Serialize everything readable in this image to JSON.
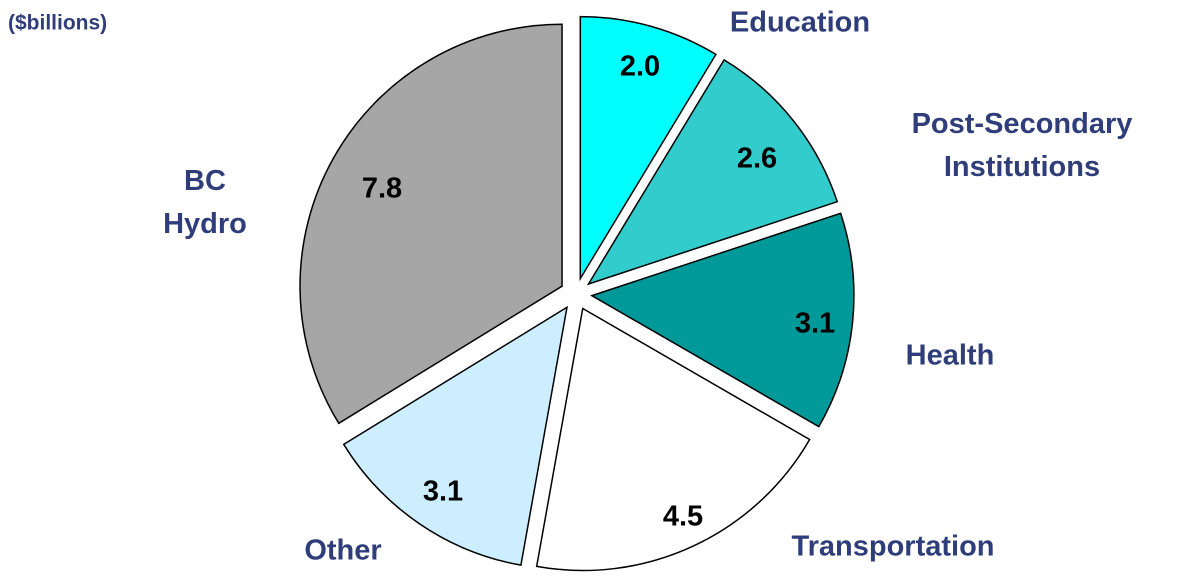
{
  "chart_data": {
    "type": "pie",
    "subtitle": "($billions)",
    "categories": [
      "Education",
      "Post-Secondary Institutions",
      "Health",
      "Transportation",
      "Other",
      "BC Hydro"
    ],
    "values": [
      2.0,
      2.6,
      3.1,
      4.5,
      3.1,
      7.8
    ],
    "value_labels": [
      "2.0",
      "2.6",
      "3.1",
      "4.5",
      "3.1",
      "7.8"
    ],
    "colors": [
      "#00ffff",
      "#33cccc",
      "#009999",
      "#ffffff",
      "#cceeff",
      "#a6a6a6"
    ]
  }
}
